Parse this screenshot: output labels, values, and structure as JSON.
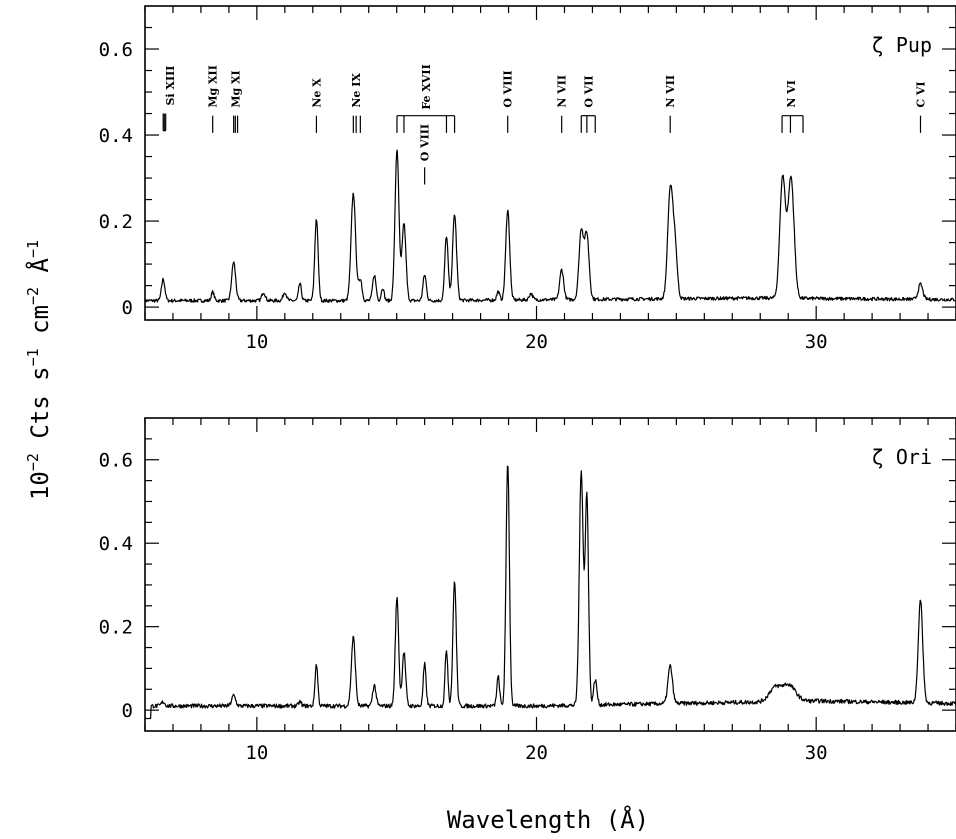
{
  "chart_data": [
    {
      "type": "line",
      "panel": "top",
      "star_label": "ζ Pup",
      "xlim": [
        6,
        35
      ],
      "ylim": [
        -0.03,
        0.7
      ],
      "yticks": [
        "0",
        "0.2",
        "0.4",
        "0.6"
      ],
      "xticks": [
        "10",
        "20",
        "30"
      ],
      "continuum": 0.015,
      "peaks": [
        {
          "x": 6.65,
          "h": 0.05,
          "w": 0.06
        },
        {
          "x": 8.42,
          "h": 0.02,
          "w": 0.05
        },
        {
          "x": 9.17,
          "h": 0.09,
          "w": 0.07
        },
        {
          "x": 10.24,
          "h": 0.02,
          "w": 0.06
        },
        {
          "x": 11.0,
          "h": 0.02,
          "w": 0.06
        },
        {
          "x": 11.54,
          "h": 0.04,
          "w": 0.05
        },
        {
          "x": 12.13,
          "h": 0.19,
          "w": 0.06
        },
        {
          "x": 13.45,
          "h": 0.25,
          "w": 0.08
        },
        {
          "x": 13.7,
          "h": 0.05,
          "w": 0.06
        },
        {
          "x": 14.2,
          "h": 0.06,
          "w": 0.06
        },
        {
          "x": 14.5,
          "h": 0.03,
          "w": 0.05
        },
        {
          "x": 15.01,
          "h": 0.35,
          "w": 0.07
        },
        {
          "x": 15.26,
          "h": 0.18,
          "w": 0.07
        },
        {
          "x": 16.0,
          "h": 0.06,
          "w": 0.06
        },
        {
          "x": 16.78,
          "h": 0.15,
          "w": 0.06
        },
        {
          "x": 17.07,
          "h": 0.2,
          "w": 0.07
        },
        {
          "x": 18.63,
          "h": 0.02,
          "w": 0.05
        },
        {
          "x": 18.97,
          "h": 0.21,
          "w": 0.07
        },
        {
          "x": 19.8,
          "h": 0.015,
          "w": 0.06
        },
        {
          "x": 20.9,
          "h": 0.07,
          "w": 0.07
        },
        {
          "x": 21.6,
          "h": 0.16,
          "w": 0.08
        },
        {
          "x": 21.8,
          "h": 0.15,
          "w": 0.08
        },
        {
          "x": 24.78,
          "h": 0.25,
          "w": 0.09
        },
        {
          "x": 24.95,
          "h": 0.12,
          "w": 0.08
        },
        {
          "x": 28.8,
          "h": 0.28,
          "w": 0.1
        },
        {
          "x": 29.1,
          "h": 0.28,
          "w": 0.11
        },
        {
          "x": 33.73,
          "h": 0.035,
          "w": 0.08
        }
      ],
      "lines": [
        {
          "label": "Si XIII",
          "x": [
            6.65,
            6.69,
            6.74
          ],
          "text_x": 6.9,
          "bar_top": 0.45,
          "bar_bottom": 0.41
        },
        {
          "label": "Mg XII",
          "x": [
            8.42
          ],
          "text_x": 8.42,
          "bar_top": 0.445,
          "bar_bottom": 0.405
        },
        {
          "label": "Mg XI",
          "x": [
            9.17,
            9.23,
            9.31
          ],
          "text_x": 9.23,
          "bar_top": 0.445,
          "bar_bottom": 0.405
        },
        {
          "label": "Ne X",
          "x": [
            12.13
          ],
          "text_x": 12.13,
          "bar_top": 0.445,
          "bar_bottom": 0.405
        },
        {
          "label": "Ne IX",
          "x": [
            13.45,
            13.55,
            13.7
          ],
          "text_x": 13.55,
          "bar_top": 0.445,
          "bar_bottom": 0.405
        },
        {
          "label": "Fe XVII",
          "x": [
            15.01,
            15.26,
            16.78,
            17.07
          ],
          "text_x": 16.05,
          "bar_top": 0.445,
          "bar_bottom": 0.405,
          "bracket": true
        },
        {
          "label": "O VIII",
          "x": [
            16.0
          ],
          "text_x": 16.0,
          "bar_top": 0.325,
          "bar_bottom": 0.285,
          "below": true
        },
        {
          "label": "O VIII",
          "x": [
            18.97
          ],
          "text_x": 18.97,
          "bar_top": 0.445,
          "bar_bottom": 0.405
        },
        {
          "label": "N VII",
          "x": [
            20.9
          ],
          "text_x": 20.9,
          "bar_top": 0.445,
          "bar_bottom": 0.405
        },
        {
          "label": "O VII",
          "x": [
            21.6,
            21.8,
            22.1
          ],
          "text_x": 21.85,
          "bar_top": 0.445,
          "bar_bottom": 0.405,
          "bracket": true
        },
        {
          "label": "N VII",
          "x": [
            24.78
          ],
          "text_x": 24.78,
          "bar_top": 0.445,
          "bar_bottom": 0.405
        },
        {
          "label": "N VI",
          "x": [
            28.78,
            29.08,
            29.53
          ],
          "text_x": 29.1,
          "bar_top": 0.445,
          "bar_bottom": 0.405,
          "bracket": true
        },
        {
          "label": "C VI",
          "x": [
            33.73
          ],
          "text_x": 33.73,
          "bar_top": 0.445,
          "bar_bottom": 0.405
        }
      ]
    },
    {
      "type": "line",
      "panel": "bottom",
      "star_label": "ζ Ori",
      "xlim": [
        6,
        35
      ],
      "ylim": [
        -0.05,
        0.7
      ],
      "yticks": [
        "0",
        "0.2",
        "0.4",
        "0.6"
      ],
      "xticks": [
        "10",
        "20",
        "30"
      ],
      "continuum": 0.01,
      "peaks": [
        {
          "x": 6.65,
          "h": 0.01,
          "w": 0.06
        },
        {
          "x": 9.17,
          "h": 0.025,
          "w": 0.07
        },
        {
          "x": 11.54,
          "h": 0.01,
          "w": 0.05
        },
        {
          "x": 12.13,
          "h": 0.1,
          "w": 0.05
        },
        {
          "x": 13.45,
          "h": 0.165,
          "w": 0.07
        },
        {
          "x": 14.2,
          "h": 0.05,
          "w": 0.06
        },
        {
          "x": 15.01,
          "h": 0.26,
          "w": 0.06
        },
        {
          "x": 15.26,
          "h": 0.13,
          "w": 0.06
        },
        {
          "x": 16.0,
          "h": 0.1,
          "w": 0.05
        },
        {
          "x": 16.78,
          "h": 0.135,
          "w": 0.05
        },
        {
          "x": 17.07,
          "h": 0.3,
          "w": 0.06
        },
        {
          "x": 18.63,
          "h": 0.07,
          "w": 0.05
        },
        {
          "x": 18.97,
          "h": 0.585,
          "w": 0.06
        },
        {
          "x": 21.6,
          "h": 0.56,
          "w": 0.07
        },
        {
          "x": 21.8,
          "h": 0.5,
          "w": 0.06
        },
        {
          "x": 22.1,
          "h": 0.06,
          "w": 0.06
        },
        {
          "x": 24.78,
          "h": 0.09,
          "w": 0.08
        },
        {
          "x": 28.5,
          "h": 0.03,
          "w": 0.2
        },
        {
          "x": 29.0,
          "h": 0.04,
          "w": 0.25
        },
        {
          "x": 33.73,
          "h": 0.245,
          "w": 0.08
        }
      ],
      "lines": []
    }
  ],
  "axes": {
    "ylabel_parts": [
      "10",
      "−2",
      " Cts s",
      "−1",
      " cm",
      "−2",
      " Å",
      "−1"
    ],
    "xlabel": "Wavelength (Å)"
  }
}
